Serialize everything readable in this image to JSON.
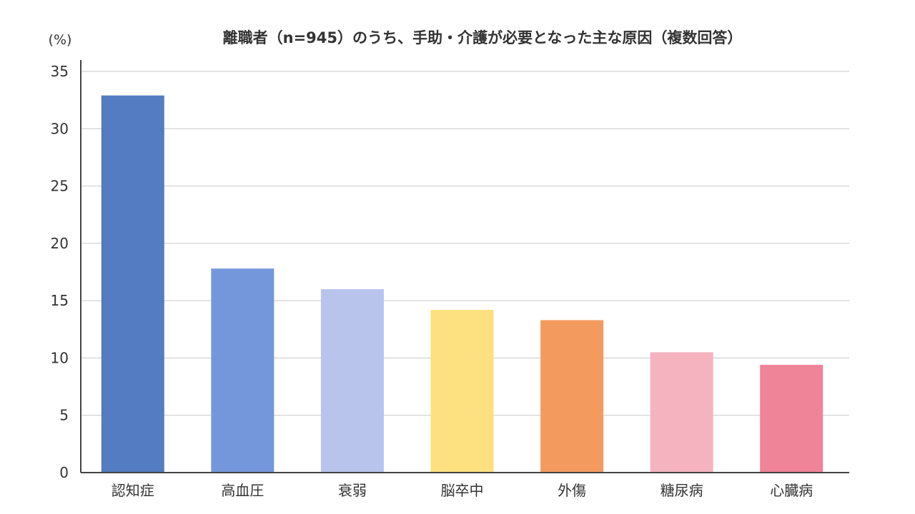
{
  "chart_data": {
    "type": "bar",
    "title": "離職者（n=945）のうち、手助・介護が必要となった主な原因（複数回答）",
    "unit_label": "(%)",
    "xlabel": "",
    "ylabel": "",
    "ylim": [
      0,
      35
    ],
    "yticks": [
      0,
      5,
      10,
      15,
      20,
      25,
      30,
      35
    ],
    "grid": true,
    "legend": "none",
    "categories": [
      "認知症",
      "高血圧",
      "衰弱",
      "脳卒中",
      "外傷",
      "糖尿病",
      "心臓病"
    ],
    "values": [
      32.9,
      17.8,
      16.0,
      14.2,
      13.3,
      10.5,
      9.4
    ],
    "colors": [
      "#537cc2",
      "#7497dc",
      "#b8c4ec",
      "#fde07f",
      "#f39b5f",
      "#f5b3c0",
      "#ef8398"
    ]
  }
}
